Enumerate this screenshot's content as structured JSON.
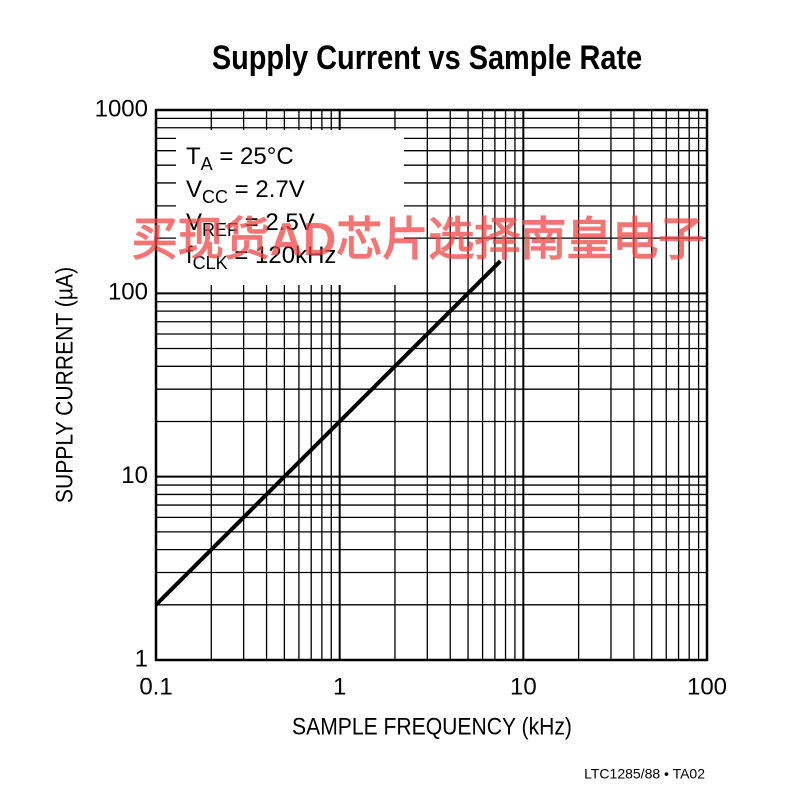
{
  "chart_data": {
    "type": "line",
    "title": "Supply Current vs Sample Rate",
    "x_label": "SAMPLE FREQUENCY (kHz)",
    "y_label": "SUPPLY CURRENT (µA)",
    "x_scale": "log",
    "y_scale": "log",
    "grid": true,
    "minor_grid": true,
    "xlim": [
      0.1,
      100
    ],
    "ylim": [
      1,
      1000
    ],
    "xticks": [
      0.1,
      1,
      10,
      100
    ],
    "yticks": [
      1,
      10,
      100,
      1000
    ],
    "x": [
      0.1,
      7.5
    ],
    "series": [
      {
        "color": "#000000",
        "values": [
          2,
          150
        ]
      }
    ],
    "annotations": [
      {
        "main": "T",
        "sub": "A",
        "rest": " = 25°C"
      },
      {
        "main": "V",
        "sub": "CC",
        "rest": " = 2.7V"
      },
      {
        "main": "V",
        "sub": "REF",
        "rest": " = 2.5V"
      },
      {
        "main": "f",
        "sub": "CLK",
        "rest": " = 120kHz"
      }
    ],
    "watermark": "买现货AD芯片选择南皇电子",
    "footnote": "LTC1285/88 • TA02"
  }
}
